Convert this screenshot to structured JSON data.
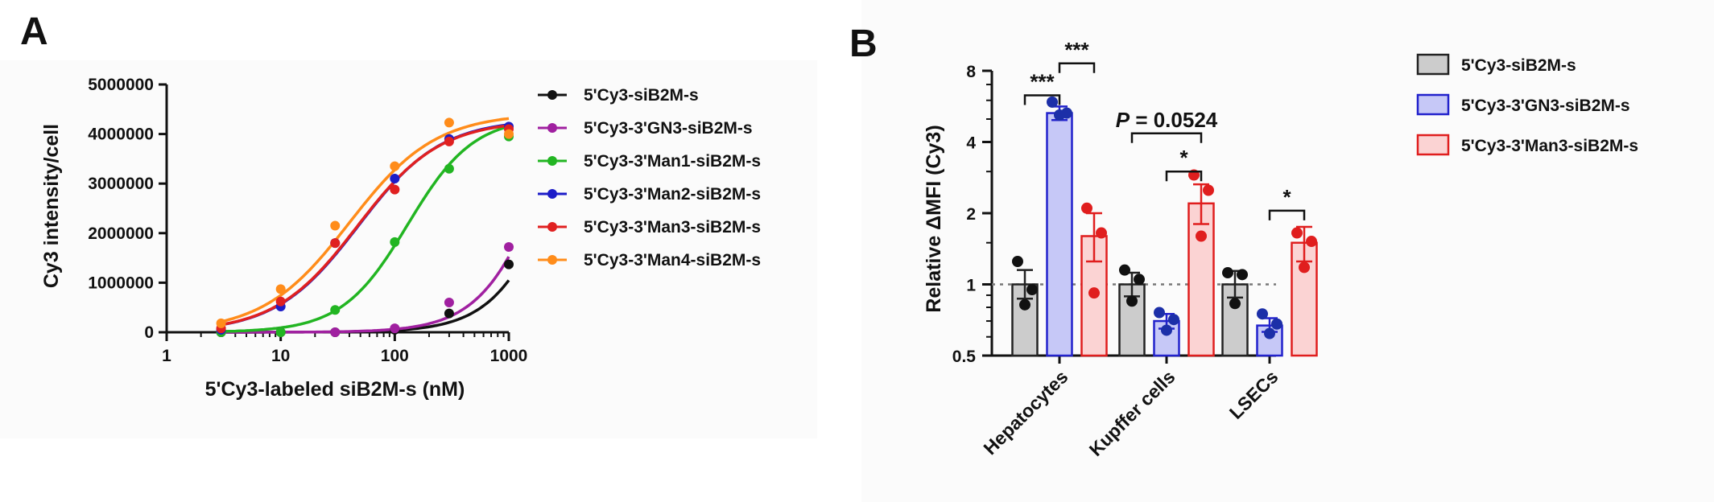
{
  "panel_a": {
    "letter": "A",
    "chart_data": {
      "type": "line",
      "xscale": "log",
      "xlabel": "5'Cy3-labeled siB2M-s (nM)",
      "ylabel": "Cy3 intensity/cell",
      "xlim": [
        1,
        1000
      ],
      "ylim": [
        0,
        5000000
      ],
      "x_ticks": [
        1,
        10,
        100,
        1000
      ],
      "x_tick_labels": [
        "1",
        "10",
        "100",
        "1000"
      ],
      "y_ticks": [
        0,
        1000000,
        2000000,
        3000000,
        4000000,
        5000000
      ],
      "y_tick_labels": [
        "0",
        "1000000",
        "2000000",
        "3000000",
        "4000000",
        "5000000"
      ],
      "legend_position": "right",
      "series": [
        {
          "name": "5'Cy3-siB2M-s",
          "color": "#111111",
          "x": [
            3,
            10,
            30,
            100,
            300,
            1000
          ],
          "y": [
            0,
            0,
            0,
            50000,
            380000,
            1370000
          ],
          "fit": {
            "top": 6500000,
            "ec50": 3000,
            "hill": 1.5
          }
        },
        {
          "name": "5'Cy3-3'GN3-siB2M-s",
          "color": "#a020a0",
          "x": [
            3,
            10,
            30,
            100,
            300,
            1000
          ],
          "y": [
            0,
            0,
            0,
            80000,
            600000,
            1720000
          ],
          "fit": {
            "top": 6500000,
            "ec50": 2200,
            "hill": 1.5
          }
        },
        {
          "name": "5'Cy3-3'Man1-siB2M-s",
          "color": "#22b522",
          "x": [
            3,
            10,
            30,
            100,
            300,
            1000
          ],
          "y": [
            0,
            0,
            450000,
            1820000,
            3300000,
            3950000
          ],
          "fit": {
            "top": 4350000,
            "ec50": 130,
            "hill": 1.5
          }
        },
        {
          "name": "5'Cy3-3'Man2-siB2M-s",
          "color": "#1c1cc8",
          "x": [
            3,
            10,
            30,
            100,
            300,
            1000
          ],
          "y": [
            50000,
            520000,
            1800000,
            3100000,
            3900000,
            4150000
          ],
          "fit": {
            "top": 4300000,
            "ec50": 48,
            "hill": 1.2
          }
        },
        {
          "name": "5'Cy3-3'Man3-siB2M-s",
          "color": "#e02020",
          "x": [
            3,
            10,
            30,
            100,
            300,
            1000
          ],
          "y": [
            80000,
            620000,
            1800000,
            2880000,
            3850000,
            4100000
          ],
          "fit": {
            "top": 4280000,
            "ec50": 47,
            "hill": 1.2
          }
        },
        {
          "name": "5'Cy3-3'Man4-siB2M-s",
          "color": "#ff8c1a",
          "x": [
            3,
            10,
            30,
            100,
            300,
            1000
          ],
          "y": [
            180000,
            870000,
            2150000,
            3350000,
            4230000,
            4000000
          ],
          "fit": {
            "top": 4420000,
            "ec50": 40,
            "hill": 1.15
          }
        }
      ]
    }
  },
  "panel_b": {
    "letter": "B",
    "chart_data": {
      "type": "bar",
      "yscale": "log2",
      "ylabel": "Relative ΔMFI (Cy3)",
      "ylim": [
        0.5,
        8
      ],
      "y_ticks": [
        0.5,
        1,
        2,
        4,
        8
      ],
      "y_tick_labels": [
        "0.5",
        "1",
        "2",
        "4",
        "8"
      ],
      "reference_line": 1,
      "categories": [
        "Hepatocytes",
        "Kupffer cells",
        "LSECs"
      ],
      "legend_position": "top-right",
      "series": [
        {
          "name": "5'Cy3-siB2M-s",
          "fill": "#cccccc",
          "edge": "#222222",
          "dot": "#111111",
          "values": [
            1.0,
            1.0,
            1.0
          ],
          "sem_hi": [
            1.15,
            1.12,
            1.14
          ],
          "sem_lo": [
            0.87,
            0.89,
            0.88
          ],
          "points": [
            [
              1.25,
              0.95,
              0.82
            ],
            [
              1.15,
              1.05,
              0.85
            ],
            [
              1.12,
              1.1,
              0.83
            ]
          ]
        },
        {
          "name": "5'Cy3-3'GN3-siB2M-s",
          "fill": "#c6c8f7",
          "edge": "#2222cc",
          "dot": "#1c2fa8",
          "values": [
            5.3,
            0.7,
            0.67
          ],
          "sem_hi": [
            5.65,
            0.75,
            0.72
          ],
          "sem_lo": [
            4.95,
            0.65,
            0.63
          ],
          "points": [
            [
              5.9,
              5.3,
              5.2
            ],
            [
              0.76,
              0.71,
              0.64
            ],
            [
              0.75,
              0.68,
              0.62
            ]
          ]
        },
        {
          "name": "5'Cy3-3'Man3-siB2M-s",
          "fill": "#fbd3d3",
          "edge": "#e01e1e",
          "dot": "#e01e1e",
          "values": [
            1.6,
            2.2,
            1.5
          ],
          "sem_hi": [
            2.0,
            2.65,
            1.75
          ],
          "sem_lo": [
            1.25,
            1.8,
            1.25
          ],
          "points": [
            [
              2.1,
              1.65,
              0.92
            ],
            [
              2.9,
              2.5,
              1.6
            ],
            [
              1.65,
              1.52,
              1.18
            ]
          ]
        }
      ],
      "annotations": [
        {
          "text": "***",
          "category": 0,
          "from_series": 0,
          "to_series": 1,
          "level": 6.3
        },
        {
          "text": "***",
          "category": 0,
          "from_series": 1,
          "to_series": 2,
          "level": 8.6
        },
        {
          "text": "P = 0.0524",
          "category": 1,
          "from_series": 0,
          "to_series": 2,
          "level": 4.35
        },
        {
          "text": "*",
          "category": 1,
          "from_series": 1,
          "to_series": 2,
          "level": 3.0
        },
        {
          "text": "*",
          "category": 2,
          "from_series": 1,
          "to_series": 2,
          "level": 2.05
        }
      ]
    }
  }
}
